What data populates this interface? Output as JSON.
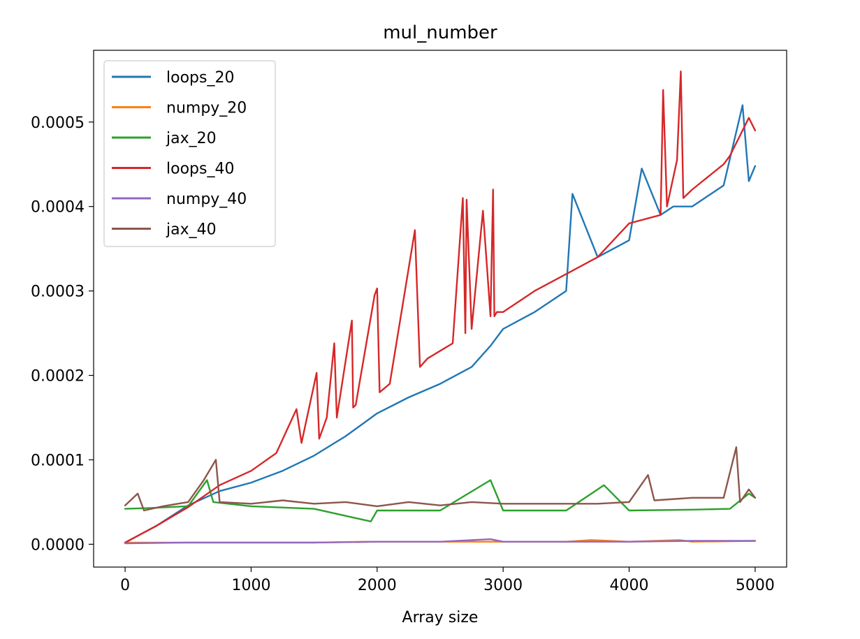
{
  "chart_data": {
    "type": "line",
    "title": "mul_number",
    "xlabel": "Array size",
    "ylabel": "",
    "xlim": [
      -250,
      5250
    ],
    "ylim": [
      -2.7e-05,
      0.000585
    ],
    "xticks": [
      0,
      1000,
      2000,
      3000,
      4000,
      5000
    ],
    "xtick_labels": [
      "0",
      "1000",
      "2000",
      "3000",
      "4000",
      "5000"
    ],
    "yticks": [
      0,
      0.0001,
      0.0002,
      0.0003,
      0.0004,
      0.0005
    ],
    "ytick_labels": [
      "0.0000",
      "0.0001",
      "0.0002",
      "0.0003",
      "0.0004",
      "0.0005"
    ],
    "grid": false,
    "legend_position": "upper-left",
    "series": [
      {
        "name": "loops_20",
        "color": "#1f77b4",
        "x": [
          0,
          250,
          500,
          750,
          1000,
          1250,
          1500,
          1750,
          2000,
          2250,
          2500,
          2750,
          2900,
          3000,
          3250,
          3500,
          3550,
          3750,
          4000,
          4100,
          4250,
          4350,
          4500,
          4750,
          4900,
          4950,
          5000
        ],
        "y": [
          2e-06,
          2.2e-05,
          4.6e-05,
          6.3e-05,
          7.3e-05,
          8.7e-05,
          0.000105,
          0.000128,
          0.000155,
          0.000174,
          0.00019,
          0.00021,
          0.000235,
          0.000255,
          0.000275,
          0.0003,
          0.000415,
          0.00034,
          0.00036,
          0.000445,
          0.00039,
          0.0004,
          0.0004,
          0.000425,
          0.00052,
          0.00043,
          0.000448
        ]
      },
      {
        "name": "numpy_20",
        "color": "#ff7f0e",
        "x": [
          0,
          500,
          1000,
          1500,
          2000,
          2500,
          3000,
          3500,
          3700,
          4000,
          4400,
          4500,
          5000
        ],
        "y": [
          2e-06,
          2e-06,
          2e-06,
          2e-06,
          3e-06,
          3e-06,
          3e-06,
          3e-06,
          5e-06,
          3e-06,
          5e-06,
          3e-06,
          4e-06
        ]
      },
      {
        "name": "jax_20",
        "color": "#2ca02c",
        "x": [
          0,
          200,
          500,
          650,
          700,
          1000,
          1500,
          1950,
          2000,
          2500,
          2900,
          3000,
          3250,
          3500,
          3800,
          4000,
          4500,
          4800,
          4950,
          5000
        ],
        "y": [
          4.2e-05,
          4.3e-05,
          4.5e-05,
          7.6e-05,
          5e-05,
          4.5e-05,
          4.2e-05,
          2.7e-05,
          4e-05,
          4e-05,
          7.6e-05,
          4e-05,
          4e-05,
          4e-05,
          7e-05,
          4e-05,
          4.1e-05,
          4.2e-05,
          6e-05,
          5.5e-05
        ]
      },
      {
        "name": "loops_40",
        "color": "#d62728",
        "x": [
          0,
          250,
          500,
          750,
          1000,
          1200,
          1360,
          1400,
          1520,
          1540,
          1600,
          1660,
          1680,
          1800,
          1810,
          1830,
          1980,
          2000,
          2020,
          2100,
          2300,
          2340,
          2400,
          2600,
          2680,
          2700,
          2710,
          2750,
          2840,
          2900,
          2920,
          2930,
          2950,
          3000,
          3250,
          3500,
          3750,
          4000,
          4250,
          4270,
          4300,
          4380,
          4410,
          4430,
          4500,
          4750,
          4800,
          4950,
          5000
        ],
        "y": [
          2e-06,
          2.2e-05,
          4.4e-05,
          7e-05,
          8.7e-05,
          0.000108,
          0.00016,
          0.00012,
          0.000203,
          0.000125,
          0.00015,
          0.000238,
          0.00015,
          0.000265,
          0.000162,
          0.000165,
          0.000295,
          0.000303,
          0.00018,
          0.00019,
          0.000372,
          0.00021,
          0.00022,
          0.000238,
          0.00041,
          0.00025,
          0.000408,
          0.000255,
          0.000395,
          0.00027,
          0.00042,
          0.00027,
          0.000275,
          0.000275,
          0.0003,
          0.00032,
          0.00034,
          0.00038,
          0.00039,
          0.000538,
          0.0004,
          0.000455,
          0.00056,
          0.00041,
          0.00042,
          0.00045,
          0.00046,
          0.000505,
          0.00049
        ]
      },
      {
        "name": "numpy_40",
        "color": "#9467bd",
        "x": [
          0,
          500,
          1000,
          1500,
          2000,
          2500,
          2900,
          3000,
          3500,
          4000,
          4500,
          5000
        ],
        "y": [
          1e-06,
          2e-06,
          2e-06,
          2e-06,
          3e-06,
          3e-06,
          6e-06,
          3e-06,
          3e-06,
          3e-06,
          4e-06,
          4e-06
        ]
      },
      {
        "name": "jax_40",
        "color": "#8c564b",
        "x": [
          0,
          100,
          150,
          300,
          500,
          620,
          720,
          750,
          1000,
          1250,
          1500,
          1750,
          2000,
          2250,
          2500,
          2750,
          3000,
          3250,
          3500,
          3750,
          4000,
          4150,
          4200,
          4500,
          4750,
          4850,
          4880,
          4950,
          5000
        ],
        "y": [
          4.6e-05,
          6e-05,
          4e-05,
          4.5e-05,
          5e-05,
          7.5e-05,
          0.0001,
          5e-05,
          4.8e-05,
          5.2e-05,
          4.8e-05,
          5e-05,
          4.5e-05,
          5e-05,
          4.6e-05,
          5e-05,
          4.8e-05,
          4.8e-05,
          4.8e-05,
          4.8e-05,
          5e-05,
          8.2e-05,
          5.2e-05,
          5.5e-05,
          5.5e-05,
          0.000115,
          5e-05,
          6.5e-05,
          5.5e-05
        ]
      }
    ]
  }
}
